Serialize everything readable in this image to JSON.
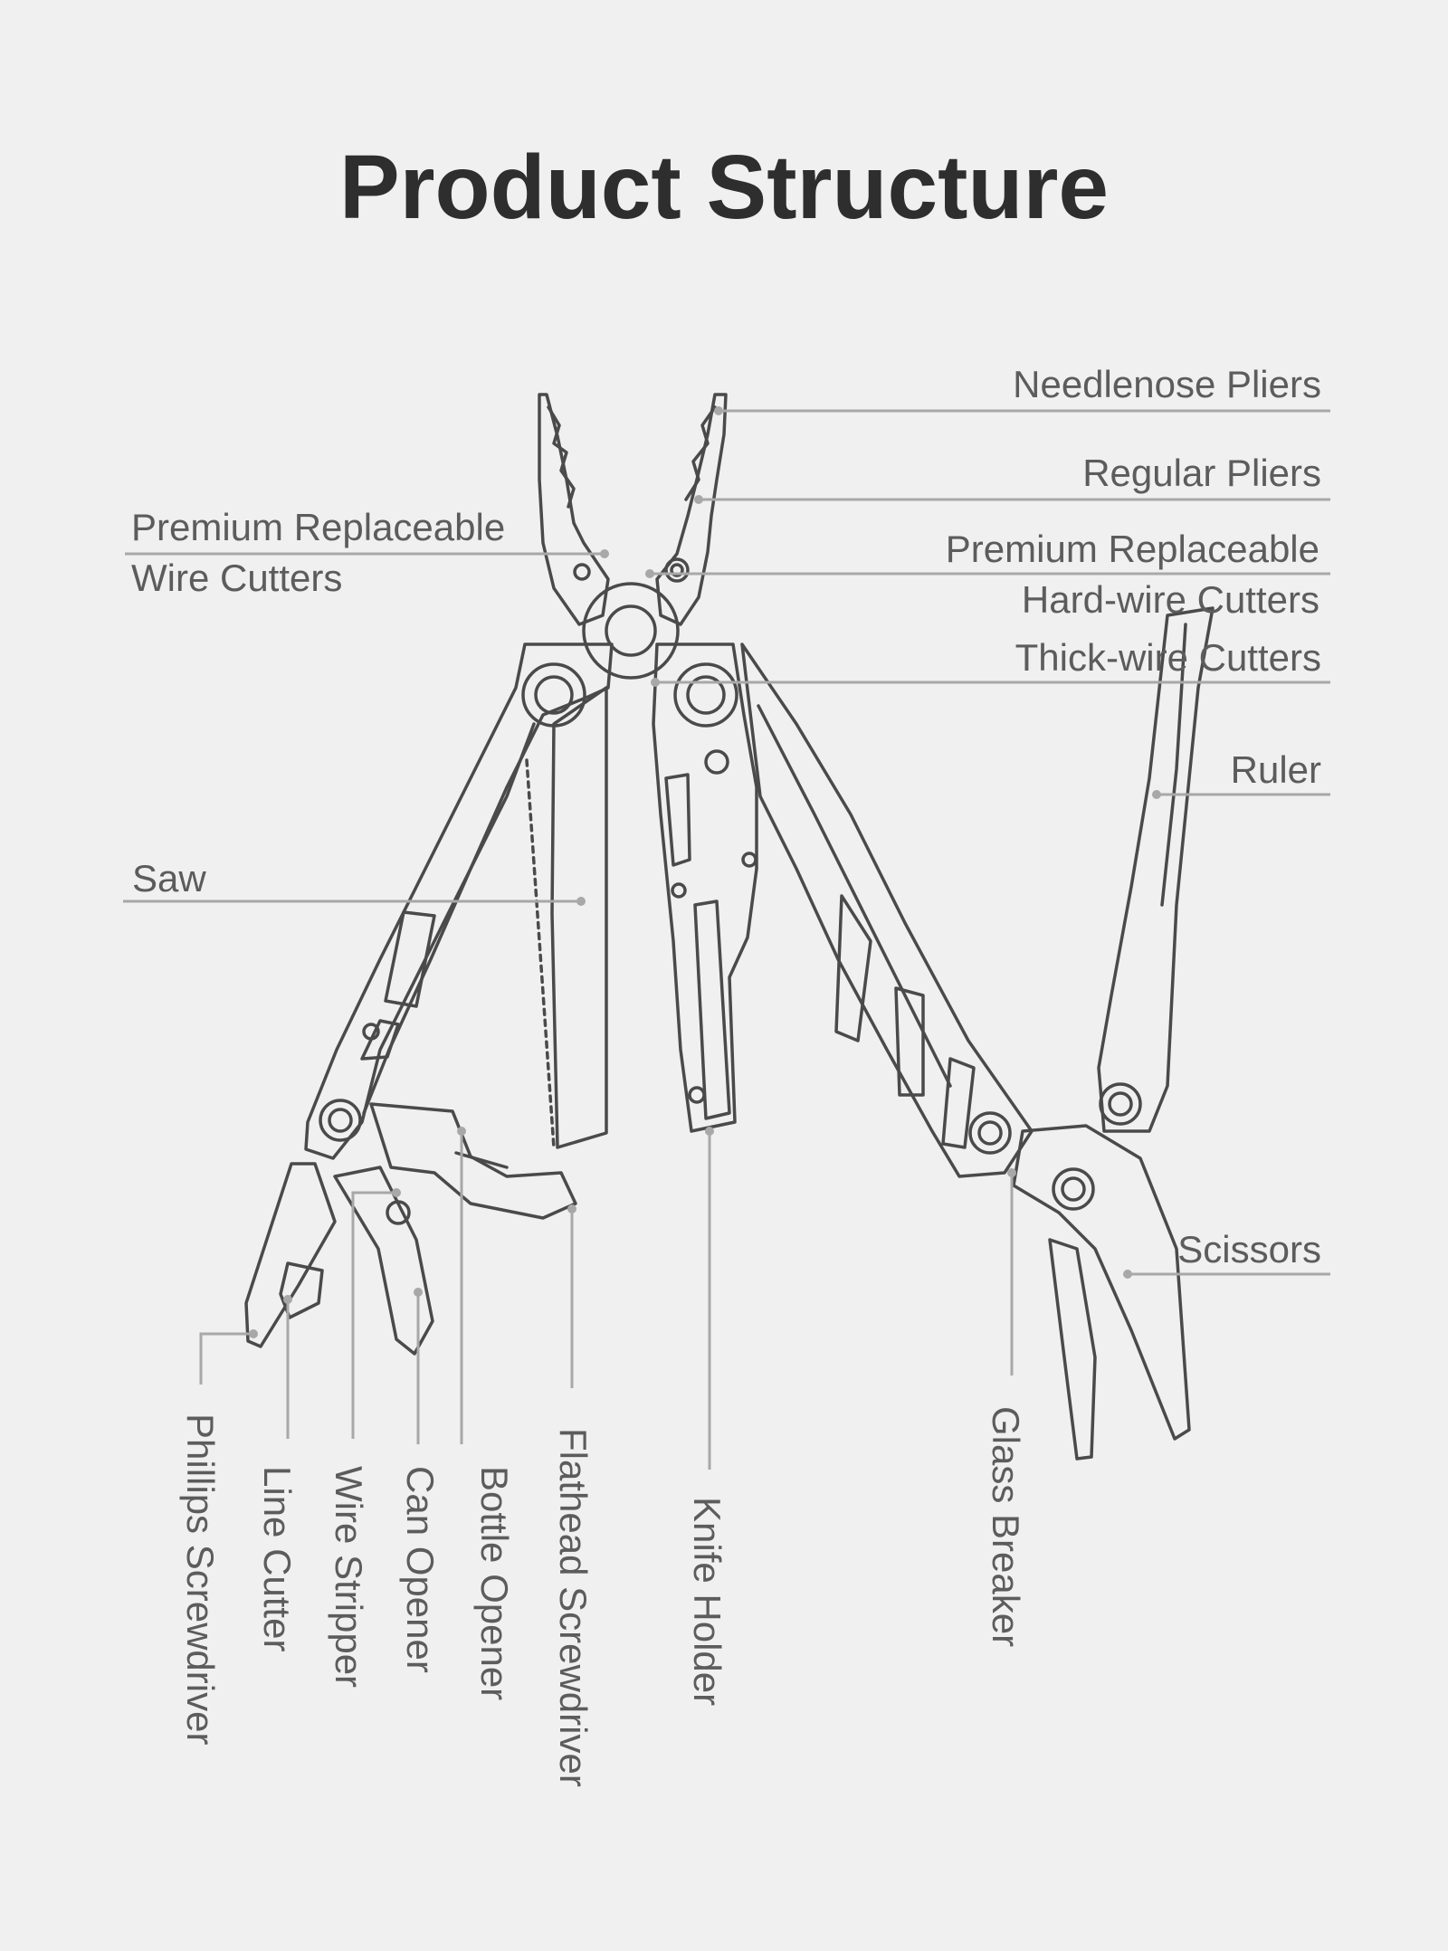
{
  "title": "Product Structure",
  "colors": {
    "background": "#f0f0f0",
    "title": "#2e2e2e",
    "label": "#5c5c5c",
    "leader": "#a8a8a8",
    "outline": "#4a4a4a"
  },
  "labels": {
    "needlenose_pliers": "Needlenose Pliers",
    "regular_pliers": "Regular Pliers",
    "premium_wire_cutters_l1": "Premium Replaceable",
    "premium_wire_cutters_l2": "Wire Cutters",
    "premium_hardwire_l1": "Premium Replaceable",
    "premium_hardwire_l2": "Hard-wire Cutters",
    "thick_wire_cutters": "Thick-wire Cutters",
    "ruler": "Ruler",
    "saw": "Saw",
    "scissors": "Scissors",
    "phillips_screwdriver": "Phillips Screwdriver",
    "line_cutter": "Line Cutter",
    "wire_stripper": "Wire Stripper",
    "can_opener": "Can Opener",
    "bottle_opener": "Bottle Opener",
    "flathead_screwdriver": "Flathead Screwdriver",
    "knife_holder": "Knife Holder",
    "glass_breaker": "Glass Breaker"
  }
}
